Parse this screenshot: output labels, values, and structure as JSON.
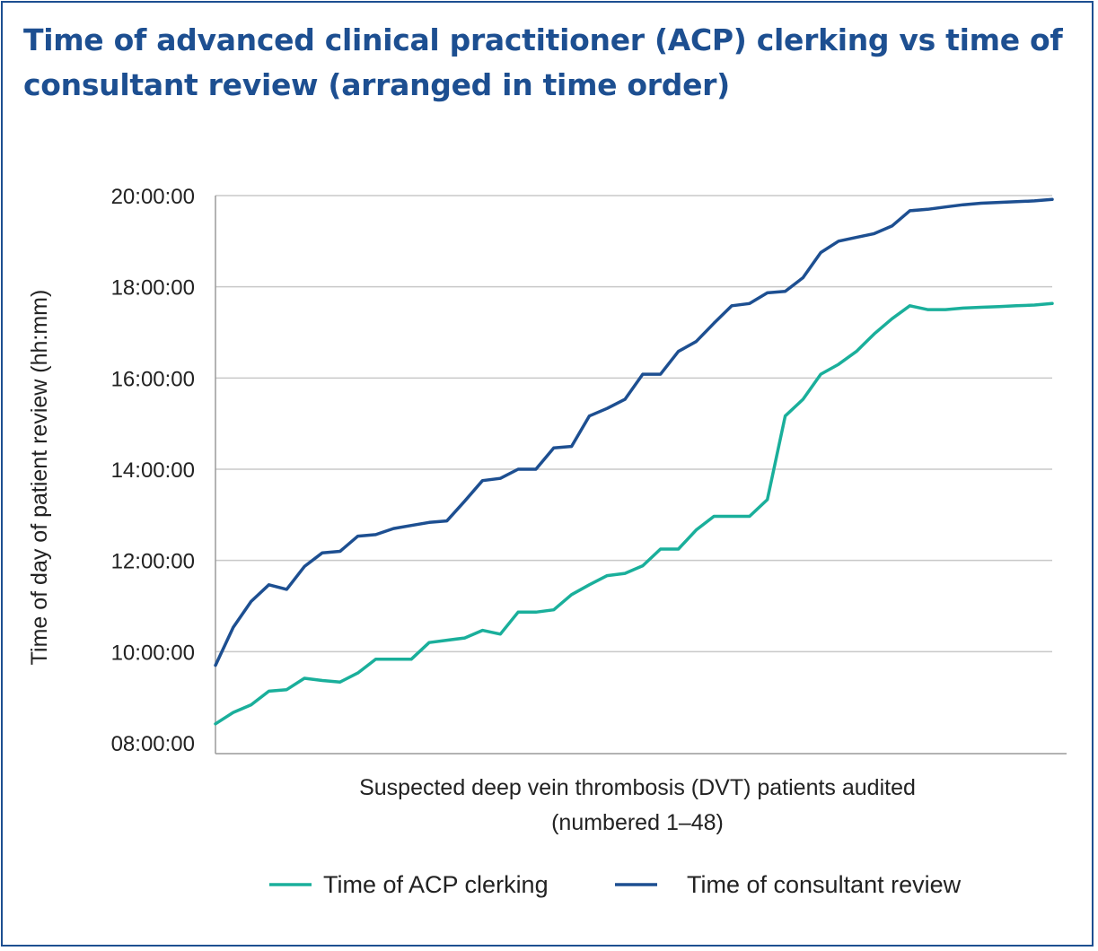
{
  "chart_data": {
    "type": "line",
    "title": "Time of advanced clinical practitioner (ACP) clerking vs time of consultant review (arranged in time order)",
    "xlabel_lines": [
      "Suspected deep vein thrombosis (DVT) patients audited",
      "(numbered 1–48)"
    ],
    "ylabel": "Time of day of patient review (hh:mm)",
    "y_ticks": [
      "20:00:00",
      "18:00:00",
      "16:00:00",
      "14:00:00",
      "12:00:00",
      "10:00:00",
      "08:00:00"
    ],
    "ylim": [
      "08:00",
      "20:00"
    ],
    "x": [
      1,
      2,
      3,
      4,
      5,
      6,
      7,
      8,
      9,
      10,
      11,
      12,
      13,
      14,
      15,
      16,
      17,
      18,
      19,
      20,
      21,
      22,
      23,
      24,
      25,
      26,
      27,
      28,
      29,
      30,
      31,
      32,
      33,
      34,
      35,
      36,
      37,
      38,
      39,
      40,
      41,
      42,
      43,
      44,
      45,
      46,
      47,
      48
    ],
    "grid": "horizontal",
    "legend_position": "bottom",
    "series": [
      {
        "name": "Time of ACP clerking",
        "color": "#1aaf9b",
        "values": [
          "08:25",
          "08:40",
          "08:50",
          "09:08",
          "09:10",
          "09:25",
          "09:22",
          "09:20",
          "09:32",
          "09:50",
          "09:50",
          "09:50",
          "10:12",
          "10:15",
          "10:18",
          "10:28",
          "10:23",
          "10:52",
          "10:52",
          "10:55",
          "11:15",
          "11:28",
          "11:40",
          "11:43",
          "11:53",
          "12:15",
          "12:15",
          "12:40",
          "12:58",
          "12:58",
          "12:58",
          "13:20",
          "15:10",
          "15:32",
          "16:05",
          "16:18",
          "16:35",
          "16:58",
          "17:18",
          "17:35",
          "17:30",
          "17:30",
          "17:32",
          "17:33",
          "17:34",
          "17:35",
          "17:36",
          "17:38"
        ]
      },
      {
        "name": "Time of consultant review",
        "color": "#1d4f91",
        "values": [
          "09:42",
          "10:32",
          "11:06",
          "11:28",
          "11:22",
          "11:52",
          "12:10",
          "12:12",
          "12:32",
          "12:34",
          "12:42",
          "12:46",
          "12:50",
          "12:52",
          "13:18",
          "13:45",
          "13:48",
          "14:00",
          "14:00",
          "14:28",
          "14:30",
          "15:10",
          "15:20",
          "15:32",
          "16:05",
          "16:05",
          "16:35",
          "16:48",
          "17:12",
          "17:35",
          "17:38",
          "17:52",
          "17:54",
          "18:12",
          "18:45",
          "19:00",
          "19:05",
          "19:10",
          "19:20",
          "19:40",
          "19:42",
          "19:45",
          "19:48",
          "19:50",
          "19:51",
          "19:52",
          "19:53",
          "19:55"
        ]
      }
    ]
  }
}
